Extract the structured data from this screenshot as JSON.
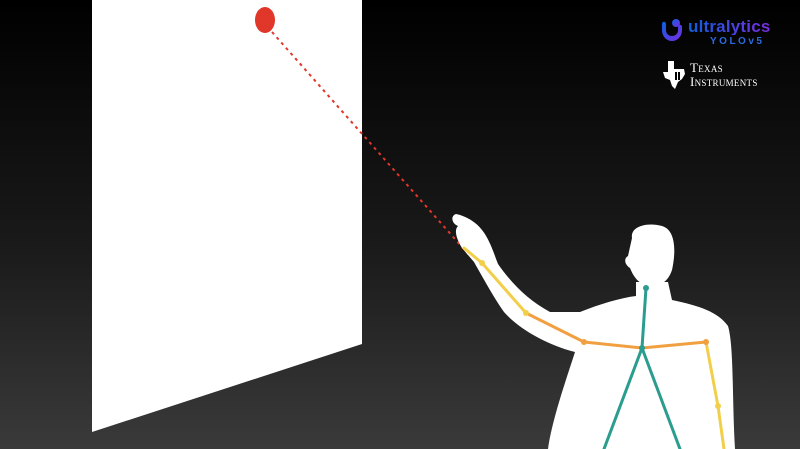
{
  "logos": {
    "ultralytics": {
      "name": "ultralytics",
      "product": "YOLOv5"
    },
    "texas_instruments": {
      "line1": "Texas",
      "line2": "Instruments"
    }
  },
  "colors": {
    "screen": "#ffffff",
    "target_dot": "#e0372a",
    "pointer_line": "#e0372a",
    "arm_right": "#f2cf4a",
    "arm_mid": "#f0a040",
    "torso": "#2a9d8f",
    "silhouette": "#ffffff"
  }
}
